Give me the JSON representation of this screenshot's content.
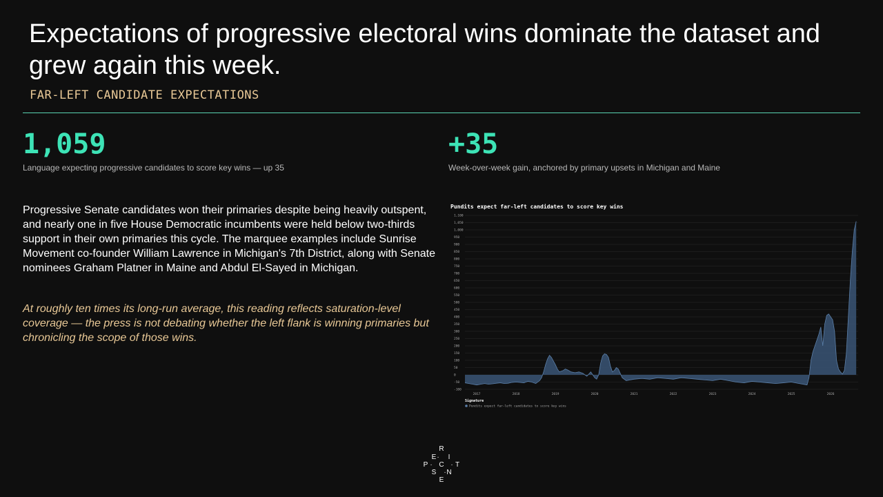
{
  "title": "Expectations of progressive electoral wins dominate the dataset and grew again this week.",
  "subtitle": "FAR-LEFT CANDIDATE EXPECTATIONS",
  "stats": [
    {
      "value": "1,059",
      "caption": "Language expecting progressive candidates to score key wins — up 35"
    },
    {
      "value": "+35",
      "caption": "Week-over-week gain, anchored by primary upsets in Michigan and Maine"
    }
  ],
  "body": "Progressive Senate candidates won their primaries despite being heavily outspent, and nearly one in five House Democratic incumbents were held below two-thirds support in their own primaries this cycle. The marquee examples include Sunrise Movement co-founder William Lawrence in Michigan's 7th District, along with Senate nominees Graham Platner in Maine and Abdul El-Sayed in Michigan.",
  "quote": "At roughly ten times its long-run average, this reading reflects saturation-level coverage — the press is not debating whether the left flank is winning primaries but chronicling the scope of those wins.",
  "logo_letters": [
    "R",
    "E",
    "I",
    "P",
    "C",
    "T",
    "S",
    "N",
    "E"
  ],
  "chart_data": {
    "type": "area",
    "title": "Pundits expect far-left candidates to score key wins",
    "ylim": [
      -100,
      1100
    ],
    "yticks": [
      -100,
      -50,
      0,
      50,
      100,
      150,
      200,
      250,
      300,
      350,
      400,
      450,
      500,
      550,
      600,
      650,
      700,
      750,
      800,
      850,
      900,
      950,
      1000,
      1050,
      1100
    ],
    "ytick_labels": [
      "-100",
      "-50",
      "0",
      "50",
      "100",
      "150",
      "200",
      "250",
      "300",
      "350",
      "400",
      "450",
      "500",
      "550",
      "600",
      "650",
      "700",
      "750",
      "800",
      "850",
      "900",
      "950",
      "1,000",
      "1,050",
      "1,100"
    ],
    "xlim": [
      2016.7,
      2026.7
    ],
    "xticks": [
      2017,
      2018,
      2019,
      2020,
      2021,
      2022,
      2023,
      2024,
      2025,
      2026
    ],
    "xtick_labels": [
      "2017",
      "2018",
      "2019",
      "2020",
      "2021",
      "2022",
      "2023",
      "2024",
      "2025",
      "2026"
    ],
    "grid": true,
    "legend_title": "Signature",
    "legend_placement": "bottom-left",
    "series": [
      {
        "name": "Pundits expect far-left candidates to score key wins",
        "color": "#5b7fa8",
        "fill": "#3a5575",
        "x": [
          2016.7,
          2016.8,
          2016.9,
          2017.0,
          2017.1,
          2017.2,
          2017.3,
          2017.4,
          2017.5,
          2017.6,
          2017.7,
          2017.8,
          2017.9,
          2018.0,
          2018.1,
          2018.2,
          2018.3,
          2018.4,
          2018.5,
          2018.6,
          2018.65,
          2018.7,
          2018.75,
          2018.8,
          2018.85,
          2018.9,
          2019.0,
          2019.05,
          2019.1,
          2019.2,
          2019.25,
          2019.3,
          2019.4,
          2019.5,
          2019.6,
          2019.7,
          2019.8,
          2019.9,
          2020.0,
          2020.05,
          2020.1,
          2020.15,
          2020.2,
          2020.25,
          2020.3,
          2020.35,
          2020.4,
          2020.45,
          2020.5,
          2020.55,
          2020.6,
          2020.65,
          2020.7,
          2020.8,
          2020.9,
          2021.0,
          2021.2,
          2021.4,
          2021.6,
          2021.8,
          2022.0,
          2022.2,
          2022.4,
          2022.6,
          2022.8,
          2023.0,
          2023.2,
          2023.4,
          2023.6,
          2023.8,
          2024.0,
          2024.2,
          2024.4,
          2024.6,
          2024.8,
          2025.0,
          2025.2,
          2025.4,
          2025.45,
          2025.5,
          2025.55,
          2025.6,
          2025.65,
          2025.7,
          2025.75,
          2025.8,
          2025.85,
          2025.9,
          2025.95,
          2026.0,
          2026.05,
          2026.1,
          2026.15,
          2026.2,
          2026.25,
          2026.3,
          2026.35,
          2026.4,
          2026.45,
          2026.5,
          2026.55,
          2026.6,
          2026.65
        ],
        "y": [
          -55,
          -60,
          -65,
          -70,
          -65,
          -60,
          -65,
          -62,
          -58,
          -55,
          -60,
          -58,
          -52,
          -50,
          -52,
          -55,
          -45,
          -50,
          -60,
          -40,
          -20,
          20,
          70,
          110,
          135,
          120,
          70,
          40,
          20,
          30,
          40,
          35,
          20,
          15,
          20,
          10,
          -10,
          20,
          -20,
          -30,
          0,
          80,
          130,
          145,
          140,
          120,
          60,
          20,
          30,
          50,
          40,
          10,
          -20,
          -40,
          -35,
          -30,
          -25,
          -30,
          -20,
          -25,
          -30,
          -20,
          -25,
          -30,
          -35,
          -40,
          -30,
          -40,
          -50,
          -55,
          -45,
          -50,
          -55,
          -60,
          -55,
          -50,
          -60,
          -70,
          -20,
          100,
          160,
          200,
          240,
          280,
          330,
          200,
          350,
          410,
          420,
          400,
          380,
          300,
          100,
          40,
          20,
          5,
          30,
          150,
          400,
          650,
          850,
          1000,
          1059
        ]
      }
    ]
  }
}
